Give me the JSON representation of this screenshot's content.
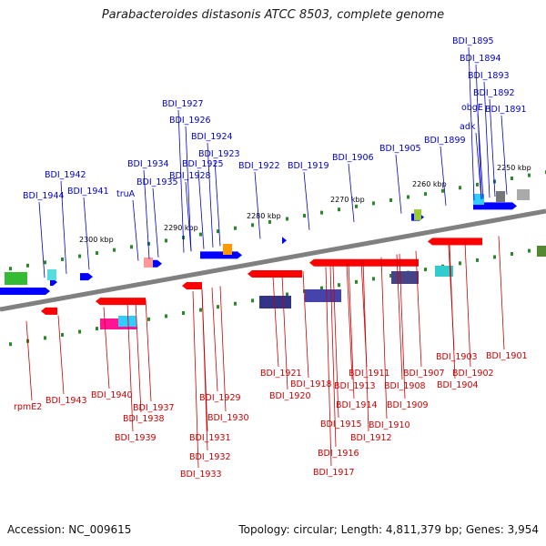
{
  "title": "Parabacteroides distasonis ATCC 8503, complete genome",
  "footer": {
    "accession": "Accession: NC_009615",
    "topology": "Topology: circular; Length: 4,811,379 bp; Genes: 3,954"
  },
  "colors": {
    "forward_gene": "#0000ff",
    "reverse_gene": "#ff0000",
    "forward_label": "#0000cc",
    "reverse_label": "#cc0000",
    "backbone": "#808080",
    "tick": "#2a8a2a"
  },
  "scale_labels": [
    "2300 kbp",
    "2290 kbp",
    "2280 kbp",
    "2270 kbp",
    "2260 kbp",
    "2250 kbp"
  ],
  "forward_labels": [
    "BDI_1944",
    "BDI_1942",
    "BDI_1941",
    "truA",
    "BDI_1934",
    "BDI_1935",
    "BDI_1927",
    "BDI_1926",
    "BDI_1925",
    "BDI_1928",
    "BDI_1924",
    "BDI_1923",
    "BDI_1922",
    "BDI_1919",
    "BDI_1906",
    "BDI_1905",
    "BDI_1899",
    "adk",
    "obgE",
    "BDI_1895",
    "BDI_1894",
    "BDI_1893",
    "BDI_1892",
    "BDI_1891"
  ],
  "reverse_labels": [
    "rpmE2",
    "BDI_1943",
    "BDI_1940",
    "BDI_1938",
    "BDI_1939",
    "BDI_1937",
    "BDI_1933",
    "BDI_1932",
    "BDI_1931",
    "BDI_1930",
    "BDI_1929",
    "BDI_1921",
    "BDI_1920",
    "BDI_1918",
    "BDI_1917",
    "BDI_1916",
    "BDI_1915",
    "BDI_1914",
    "BDI_1913",
    "BDI_1912",
    "BDI_1911",
    "BDI_1910",
    "BDI_1909",
    "BDI_1908",
    "BDI_1907",
    "BDI_1904",
    "BDI_1903",
    "BDI_1902",
    "BDI_1901"
  ]
}
